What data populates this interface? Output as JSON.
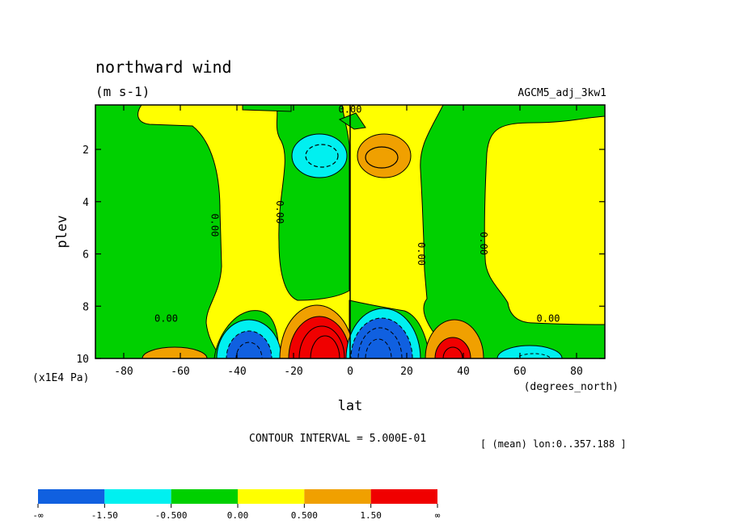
{
  "chart_data": {
    "type": "heatmap",
    "subtype": "filled-contour",
    "title": "northward wind",
    "units": "(m s-1)",
    "experiment": "AGCM5_adj_3kw1",
    "xlabel": "lat",
    "x_units": "(degrees_north)",
    "ylabel": "plev",
    "y_units": "(x1E4 Pa)",
    "xlim": [
      -90,
      90
    ],
    "ylim": [
      10,
      0.3
    ],
    "x_ticks": [
      -80,
      -60,
      -40,
      -20,
      0,
      20,
      40,
      60,
      80
    ],
    "y_ticks": [
      2,
      4,
      6,
      8,
      10
    ],
    "contour_interval_text": "CONTOUR INTERVAL = 5.000E-01",
    "mean_text": "[ (mean) lon:0..357.188 ]",
    "contour_labels": [
      {
        "text": "0.00",
        "lat": 0,
        "plev": 0.6
      },
      {
        "text": "0.00",
        "lat": -49,
        "plev": 4.9
      },
      {
        "text": "0.00",
        "lat": -26,
        "plev": 4.4
      },
      {
        "text": "0.00",
        "lat": 24,
        "plev": 6.0
      },
      {
        "text": "0.00",
        "lat": 46,
        "plev": 5.6
      },
      {
        "text": "0.00",
        "lat": -65,
        "plev": 8.6
      },
      {
        "text": "0.00",
        "lat": 70,
        "plev": 8.6
      }
    ],
    "legend": {
      "colors": [
        "#1060e0",
        "#00f0f0",
        "#00d000",
        "#ffff00",
        "#f0a000",
        "#f00000"
      ],
      "labels": [
        "-∞",
        "-1.50",
        "-0.500",
        "0.00",
        "0.500",
        "1.50",
        "∞"
      ],
      "bins": [
        {
          "range": [
            "-inf",
            -1.5
          ],
          "color": "#1060e0"
        },
        {
          "range": [
            -1.5,
            -0.5
          ],
          "color": "#00f0f0"
        },
        {
          "range": [
            -0.5,
            0.0
          ],
          "color": "#00d000"
        },
        {
          "range": [
            0.0,
            0.5
          ],
          "color": "#ffff00"
        },
        {
          "range": [
            0.5,
            1.5
          ],
          "color": "#f0a000"
        },
        {
          "range": [
            1.5,
            "inf"
          ],
          "color": "#f00000"
        }
      ]
    },
    "features": [
      {
        "lat": -35,
        "plev": 9.7,
        "value": -2.0,
        "note": "southward jet near surface"
      },
      {
        "lat": -7,
        "plev": 9.5,
        "value": 2.5,
        "note": "northward jet near surface"
      },
      {
        "lat": 7,
        "plev": 9.3,
        "value": -2.0,
        "note": "southward jet near surface"
      },
      {
        "lat": 35,
        "plev": 9.7,
        "value": 2.0,
        "note": "northward jet near surface"
      },
      {
        "lat": -9,
        "plev": 2.2,
        "value": -1.0,
        "note": "upper-level southward cell"
      },
      {
        "lat": 9,
        "plev": 2.2,
        "value": 1.0,
        "note": "upper-level northward cell"
      },
      {
        "lat": 68,
        "plev": 9.8,
        "value": -0.8
      },
      {
        "lat": -70,
        "plev": 9.8,
        "value": 0.8
      }
    ]
  }
}
